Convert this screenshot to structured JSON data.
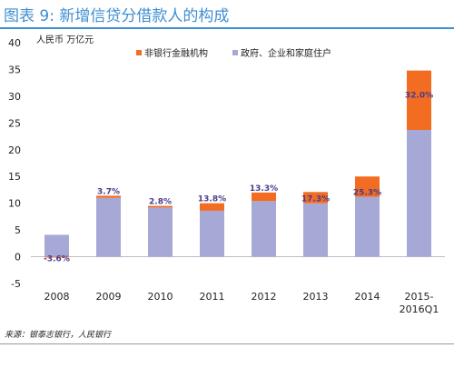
{
  "header": {
    "title": "图表 9: 新增信贷分借款人的构成"
  },
  "footer": {
    "source": "来源：银泰志银行，人民银行"
  },
  "colors": {
    "title": "#3f8fd2",
    "nonbank": "#f26d21",
    "household": "#a6a9d6"
  },
  "chart_data": {
    "type": "bar",
    "stacked": true,
    "ylabel": "人民币 万亿元",
    "ylim": [
      -5,
      40
    ],
    "yticks": [
      -5,
      0,
      5,
      10,
      15,
      20,
      25,
      30,
      35,
      40
    ],
    "categories": [
      "2008",
      "2009",
      "2010",
      "2011",
      "2012",
      "2013",
      "2014",
      "2015-\n2016Q1"
    ],
    "series": [
      {
        "name": "政府、企业和家庭住户",
        "values": [
          4.1,
          11.0,
          9.2,
          8.6,
          10.4,
          10.0,
          11.2,
          23.7
        ]
      },
      {
        "name": "非银行金融机构",
        "values": [
          -0.15,
          0.4,
          0.3,
          1.4,
          1.6,
          2.1,
          3.8,
          11.1
        ]
      }
    ],
    "data_labels": [
      "-3.6%",
      "3.7%",
      "2.8%",
      "13.8%",
      "13.3%",
      "17.3%",
      "25.3%",
      "32.0%"
    ],
    "legend_position": "top",
    "grid": false
  }
}
